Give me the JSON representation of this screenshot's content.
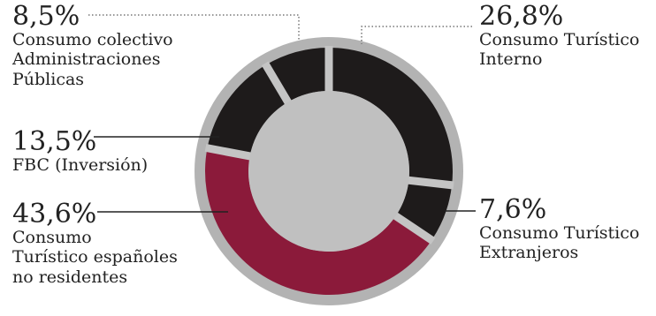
{
  "chart_data": {
    "type": "pie",
    "style": "donut",
    "title": "",
    "slices": [
      {
        "label": "Consumo Turístico\nInterno",
        "value_label": "26,8%",
        "value": 26.8,
        "color": "#1e1b1b"
      },
      {
        "label": "Consumo Turístico\nExtranjeros",
        "value_label": "7,6%",
        "value": 7.6,
        "color": "#1e1b1b"
      },
      {
        "label": "Consumo\nTurístico españoles\nno residentes",
        "value_label": "43,6%",
        "value": 43.6,
        "color": "#8b1a3a"
      },
      {
        "label": "FBC (Inversión)",
        "value_label": "13,5%",
        "value": 13.5,
        "color": "#1e1b1b"
      },
      {
        "label": "Consumo colectivo\nAdministraciones\nPúblicas",
        "value_label": "8,5%",
        "value": 8.5,
        "color": "#1e1b1b"
      }
    ],
    "colors": {
      "outer_ring": "#b3b3b3",
      "center": "#c0c0c0",
      "separator": "#c4c4c4"
    }
  }
}
